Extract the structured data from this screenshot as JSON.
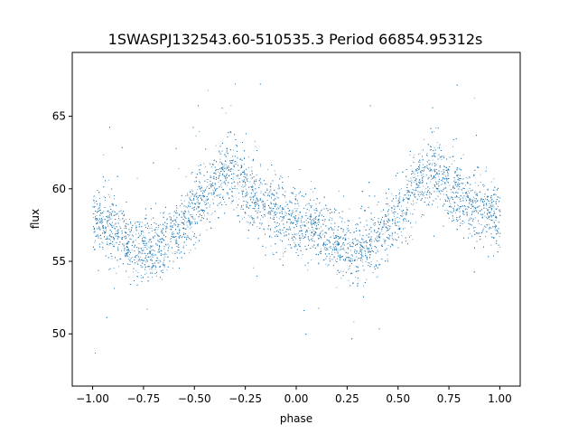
{
  "chart_data": {
    "type": "scatter",
    "title": "1SWASPJ132543.60-510535.3 Period 66854.95312s",
    "xlabel": "phase",
    "ylabel": "flux",
    "xlim": [
      -1.1,
      1.1
    ],
    "ylim": [
      46.4,
      69.4
    ],
    "xticks": [
      -1.0,
      -0.75,
      -0.5,
      -0.25,
      0.0,
      0.25,
      0.5,
      0.75,
      1.0
    ],
    "xtick_labels": [
      "−1.00",
      "−0.75",
      "−0.50",
      "−0.25",
      "0.00",
      "0.25",
      "0.50",
      "0.75",
      "1.00"
    ],
    "yticks": [
      50,
      55,
      60,
      65
    ],
    "ytick_labels": [
      "50",
      "55",
      "60",
      "65"
    ],
    "grid": false,
    "marker_color": "#1f77b4",
    "series": [
      {
        "phase_range": [
          -1.0,
          1.0
        ],
        "light_curve": {
          "phase": [
            -1.0,
            -0.9,
            -0.8,
            -0.7,
            -0.6,
            -0.5,
            -0.4,
            -0.33,
            -0.25,
            -0.15,
            -0.05,
            0.0,
            0.1,
            0.2,
            0.3,
            0.4,
            0.5,
            0.6,
            0.67,
            0.75,
            0.85,
            0.95,
            1.0
          ],
          "flux_center": [
            57.9,
            57.2,
            56.0,
            55.8,
            56.9,
            58.5,
            60.2,
            60.9,
            59.8,
            58.8,
            58.0,
            57.8,
            57.3,
            56.2,
            55.7,
            56.6,
            58.2,
            60.3,
            60.9,
            59.9,
            59.0,
            58.2,
            57.9
          ]
        }
      }
    ]
  }
}
